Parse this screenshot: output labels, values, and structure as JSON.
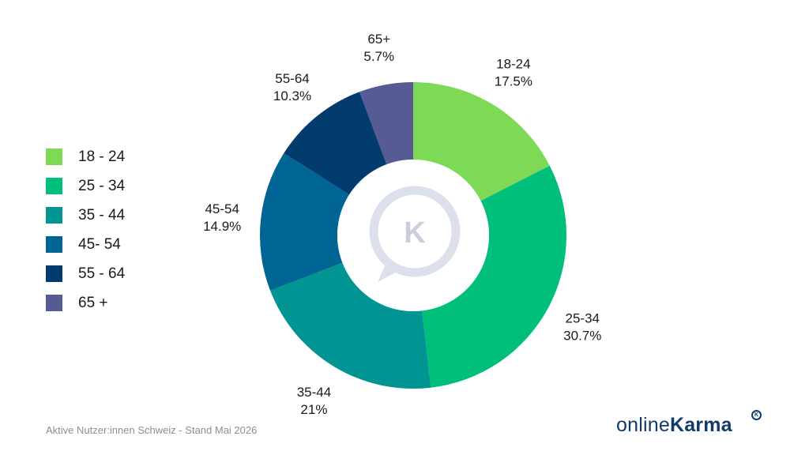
{
  "chart_data": {
    "type": "pie",
    "subtype": "donut",
    "categories": [
      "18-24",
      "25-34",
      "35-44",
      "45-54",
      "55-64",
      "65+"
    ],
    "values": [
      17.5,
      30.7,
      21,
      14.9,
      10.3,
      5.7
    ],
    "value_labels": [
      "17.5%",
      "30.7%",
      "21%",
      "14.9%",
      "10.3%",
      "5.7%"
    ],
    "colors": [
      "#7ed957",
      "#00bf7a",
      "#009492",
      "#006494",
      "#023c6e",
      "#575b94"
    ],
    "legend": {
      "position": "left",
      "labels": [
        "18 - 24",
        "25 - 34",
        "35 - 44",
        "45- 54",
        "55 - 64",
        "65 +"
      ]
    },
    "center_logo": {
      "icon": "k-speech-bubble-icon",
      "letter": "K"
    }
  },
  "footer": {
    "note": "Aktive Nutzer:innen Schweiz - Stand Mai 2026"
  },
  "brand": {
    "prefix": "online",
    "name": "Karma",
    "mark": "K"
  }
}
